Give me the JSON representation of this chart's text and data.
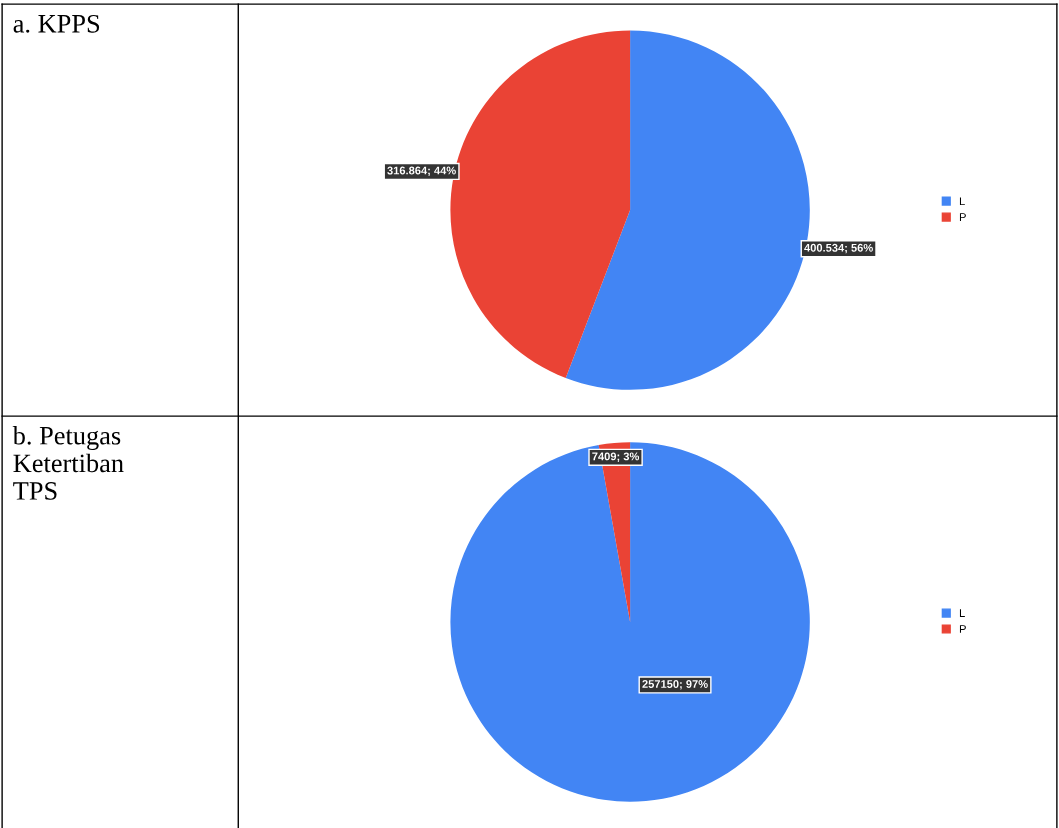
{
  "chart_data": [
    {
      "type": "pie",
      "title": "a. KPPS",
      "categories": [
        "L",
        "P"
      ],
      "values": [
        400534,
        316864
      ],
      "colors": [
        "#4285f4",
        "#ea4335"
      ],
      "value_labels": [
        "400.534; 56%",
        "316.864; 44%"
      ],
      "legend": "right"
    },
    {
      "type": "pie",
      "title": "b. Petugas Ketertiban TPS",
      "categories": [
        "L",
        "P"
      ],
      "values": [
        257150,
        7409
      ],
      "colors": [
        "#4285f4",
        "#ea4335"
      ],
      "value_labels": [
        "257150; 97%",
        "7409; 3%"
      ],
      "legend": "right"
    }
  ]
}
